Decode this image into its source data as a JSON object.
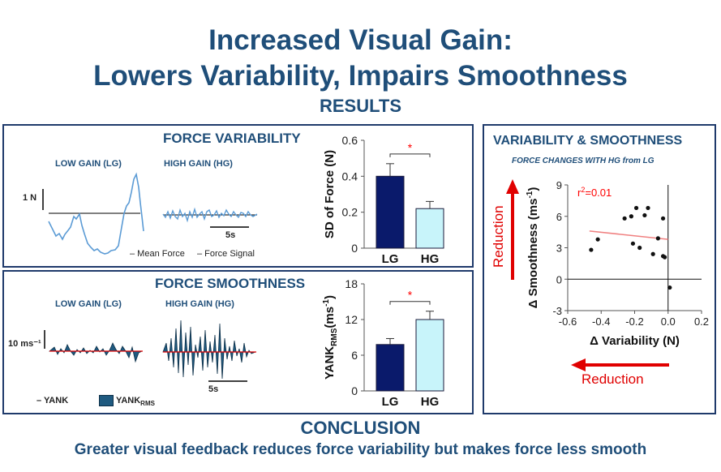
{
  "title": {
    "line1": "Increased Visual Gain:",
    "line2": "Lowers Variability, Impairs Smoothness",
    "results": "RESULTS"
  },
  "variability_panel": {
    "title": "FORCE VARIABILITY",
    "low_gain": "LOW GAIN (LG)",
    "high_gain": "HIGH GAIN (HG)",
    "scale_label": "1 N",
    "time_label": "5s",
    "legend_mean": "– Mean Force",
    "legend_signal": "– Force Signal"
  },
  "smoothness_panel": {
    "title": "FORCE SMOOTHNESS",
    "low_gain": "LOW GAIN (LG)",
    "high_gain": "HIGH GAIN (HG)",
    "scale_label": "10 ms⁻¹",
    "time_label": "5s",
    "legend_yank": "– YANK",
    "legend_rms": "YANK",
    "legend_rms_sub": "RMS"
  },
  "correlation_panel": {
    "title": "VARIABILITY & SMOOTHNESS",
    "subtitle": "FORCE CHANGES WITH HG from LG",
    "reduction_y": "Reduction",
    "reduction_x": "Reduction"
  },
  "conclusion": {
    "heading": "CONCLUSION",
    "text": "Greater visual feedback reduces force variability but makes force less smooth"
  },
  "colors": {
    "title": "#1f4e79",
    "lg_bar": "#0a1a6b",
    "hg_bar": "#c8f4fa",
    "signal": "#5b9bd5",
    "red": "#ff0000"
  },
  "chart_data": [
    {
      "type": "bar",
      "ylabel": "SD of Force (N)",
      "categories": [
        "LG",
        "HG"
      ],
      "values": [
        0.4,
        0.22
      ],
      "errors": [
        0.07,
        0.04
      ],
      "ylim": [
        0,
        0.6
      ],
      "yticks": [
        "0",
        "0.2",
        "0.4",
        "0.6"
      ],
      "significance": "*"
    },
    {
      "type": "bar",
      "ylabel": "YANK",
      "ylabel_sub": "RMS",
      "ylabel_unit": "(ms",
      "ylabel_unit_sup": "-1",
      "ylabel_unit_end": ")",
      "categories": [
        "LG",
        "HG"
      ],
      "values": [
        7.8,
        12.0
      ],
      "errors": [
        1.0,
        1.4
      ],
      "ylim": [
        0,
        18
      ],
      "yticks": [
        "0",
        "6",
        "12",
        "18"
      ],
      "significance": "*"
    },
    {
      "type": "scatter",
      "xlabel": "Δ Variability (N)",
      "ylabel": "Δ Smoothness (ms",
      "ylabel_sup": "-1",
      "ylabel_end": ")",
      "xlim": [
        -0.6,
        0.2
      ],
      "ylim": [
        -3,
        9
      ],
      "xticks": [
        "-0.6",
        "-0.4",
        "-0.2",
        "0.0",
        "0.2"
      ],
      "yticks": [
        "-3",
        "0",
        "3",
        "6",
        "9"
      ],
      "annotation": "r",
      "annotation_sup": "2",
      "annotation_end": "=0.01",
      "trend": {
        "x": [
          -0.47,
          0.0
        ],
        "y": [
          4.6,
          3.8
        ]
      },
      "x": [
        -0.46,
        -0.42,
        -0.26,
        -0.22,
        -0.19,
        -0.21,
        -0.17,
        -0.14,
        -0.12,
        -0.09,
        -0.06,
        -0.03,
        -0.03,
        -0.02,
        0.01
      ],
      "y": [
        2.8,
        3.8,
        5.8,
        6.0,
        6.8,
        3.4,
        3.0,
        6.1,
        6.8,
        2.4,
        3.9,
        5.8,
        2.2,
        2.1,
        -0.8
      ]
    }
  ]
}
